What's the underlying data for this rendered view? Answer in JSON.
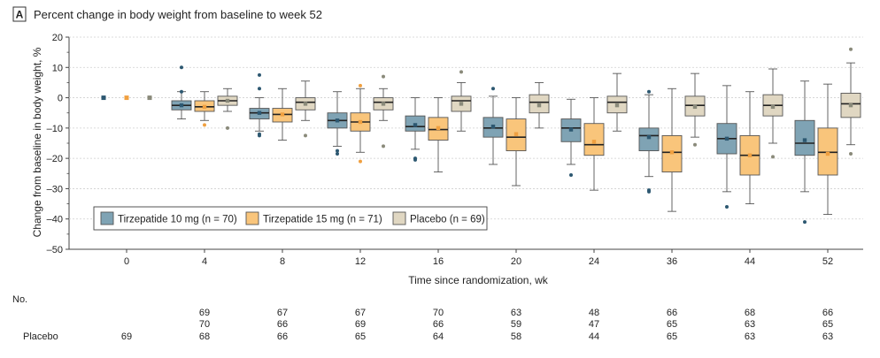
{
  "panel": {
    "letter": "A",
    "title": "Percent change in body weight from baseline to week 52"
  },
  "chart_data": {
    "type": "box",
    "title": "Percent change in body weight from baseline to week 52",
    "xlabel": "Time since randomization, wk",
    "ylabel": "Change from baseline in body weight, %",
    "ylim": [
      -50,
      20
    ],
    "yticks": [
      20,
      10,
      0,
      -10,
      -20,
      -30,
      -40,
      -50
    ],
    "categories": [
      "0",
      "4",
      "8",
      "12",
      "16",
      "20",
      "24",
      "36",
      "44",
      "52"
    ],
    "legend_position": "lower-left",
    "colors": {
      "tirz10": "#7fa3b4",
      "tirz15": "#f9c57b",
      "placebo": "#e0d7c2",
      "box_edge": "#555555",
      "mean_dot_tirz10": "#2d5871",
      "mean_dot_tirz15": "#f0a040",
      "mean_dot_placebo": "#8a8a7a"
    },
    "series": [
      {
        "key": "tirz10",
        "name": "Tirzepatide 10 mg (n = 70)",
        "boxes": [
          {
            "median": 0,
            "mean": 0,
            "q1": 0,
            "q3": 0,
            "wlo": 0,
            "whi": 0,
            "outliers": []
          },
          {
            "median": -2.5,
            "mean": -2.5,
            "q1": -4,
            "q3": -1,
            "wlo": -7,
            "whi": 2,
            "outliers": [
              10,
              2
            ]
          },
          {
            "median": -5,
            "mean": -5,
            "q1": -7,
            "q3": -3.5,
            "wlo": -11,
            "whi": 0,
            "outliers": [
              7.5,
              3,
              -12,
              -12.5
            ]
          },
          {
            "median": -7.5,
            "mean": -7.5,
            "q1": -10,
            "q3": -5,
            "wlo": -16,
            "whi": 2,
            "outliers": [
              -17.5,
              -18.5
            ]
          },
          {
            "median": -9.5,
            "mean": -9,
            "q1": -11,
            "q3": -6,
            "wlo": -17,
            "whi": 0,
            "outliers": [
              -20,
              -20.5
            ]
          },
          {
            "median": -10,
            "mean": -9.5,
            "q1": -13,
            "q3": -6.5,
            "wlo": -22,
            "whi": 0.5,
            "outliers": [
              3
            ]
          },
          {
            "median": -10,
            "mean": -10.5,
            "q1": -14.5,
            "q3": -7,
            "wlo": -22,
            "whi": -0.5,
            "outliers": [
              -25.5
            ]
          },
          {
            "median": -12.5,
            "mean": -13,
            "q1": -17.5,
            "q3": -10,
            "wlo": -26,
            "whi": 1,
            "outliers": [
              2,
              -30.5,
              -31
            ]
          },
          {
            "median": -13.5,
            "mean": -13.5,
            "q1": -18.5,
            "q3": -8.5,
            "wlo": -31,
            "whi": 4,
            "outliers": [
              -36
            ]
          },
          {
            "median": -15,
            "mean": -14,
            "q1": -19,
            "q3": -7.5,
            "wlo": -31,
            "whi": 5.5,
            "outliers": [
              -41
            ]
          }
        ]
      },
      {
        "key": "tirz15",
        "name": "Tirzepatide 15 mg (n = 71)",
        "boxes": [
          {
            "median": 0,
            "mean": 0,
            "q1": 0,
            "q3": 0,
            "wlo": 0,
            "whi": 0,
            "outliers": []
          },
          {
            "median": -3,
            "mean": -3,
            "q1": -4.5,
            "q3": -1,
            "wlo": -7.5,
            "whi": 2,
            "outliers": [
              -9
            ]
          },
          {
            "median": -5.5,
            "mean": -5.5,
            "q1": -8,
            "q3": -3.5,
            "wlo": -14,
            "whi": 3,
            "outliers": []
          },
          {
            "median": -8,
            "mean": -8,
            "q1": -11,
            "q3": -5,
            "wlo": -18,
            "whi": 3,
            "outliers": [
              4,
              -21
            ]
          },
          {
            "median": -10.5,
            "mean": -10,
            "q1": -14,
            "q3": -6.5,
            "wlo": -24.5,
            "whi": 0,
            "outliers": []
          },
          {
            "median": -13,
            "mean": -12,
            "q1": -17.5,
            "q3": -7,
            "wlo": -29,
            "whi": 0,
            "outliers": []
          },
          {
            "median": -15.5,
            "mean": -14.5,
            "q1": -19,
            "q3": -8.5,
            "wlo": -30.5,
            "whi": 0,
            "outliers": []
          },
          {
            "median": -18,
            "mean": -18,
            "q1": -24.5,
            "q3": -12.5,
            "wlo": -37.5,
            "whi": 3,
            "outliers": []
          },
          {
            "median": -19,
            "mean": -19,
            "q1": -25.5,
            "q3": -12.5,
            "wlo": -35,
            "whi": 2,
            "outliers": []
          },
          {
            "median": -18,
            "mean": -18.5,
            "q1": -25.5,
            "q3": -10,
            "wlo": -38.5,
            "whi": 4.5,
            "outliers": []
          }
        ]
      },
      {
        "key": "placebo",
        "name": "Placebo (n = 69)",
        "boxes": [
          {
            "median": 0,
            "mean": 0,
            "q1": 0,
            "q3": 0,
            "wlo": 0,
            "whi": 0,
            "outliers": []
          },
          {
            "median": -1,
            "mean": -1,
            "q1": -2.5,
            "q3": 0.5,
            "wlo": -4.5,
            "whi": 3,
            "outliers": [
              -10
            ]
          },
          {
            "median": -1.5,
            "mean": -2,
            "q1": -4,
            "q3": 0,
            "wlo": -7.5,
            "whi": 5.5,
            "outliers": [
              -12.5
            ]
          },
          {
            "median": -1.5,
            "mean": -2,
            "q1": -4,
            "q3": 0,
            "wlo": -7.5,
            "whi": 3,
            "outliers": [
              7,
              -16
            ]
          },
          {
            "median": -1,
            "mean": -2,
            "q1": -4.5,
            "q3": 0.5,
            "wlo": -11,
            "whi": 5,
            "outliers": [
              8.5
            ]
          },
          {
            "median": -1.5,
            "mean": -2.5,
            "q1": -5,
            "q3": 1,
            "wlo": -10,
            "whi": 5,
            "outliers": []
          },
          {
            "median": -1.5,
            "mean": -2.5,
            "q1": -5,
            "q3": 0.5,
            "wlo": -11,
            "whi": 8,
            "outliers": []
          },
          {
            "median": -2.5,
            "mean": -3,
            "q1": -6,
            "q3": 0.5,
            "wlo": -13,
            "whi": 8,
            "outliers": [
              -15.5
            ]
          },
          {
            "median": -2.5,
            "mean": -3,
            "q1": -6,
            "q3": 1,
            "wlo": -15,
            "whi": 9.5,
            "outliers": [
              -19.5
            ]
          },
          {
            "median": -2,
            "mean": -2.5,
            "q1": -6.5,
            "q3": 1.5,
            "wlo": -15.5,
            "whi": 11.5,
            "outliers": [
              16,
              -18.5
            ]
          }
        ]
      }
    ],
    "table": {
      "header": "No.",
      "rows": [
        {
          "label": "",
          "values": [
            "",
            "69",
            "67",
            "67",
            "70",
            "63",
            "48",
            "66",
            "68",
            "66"
          ]
        },
        {
          "label": "",
          "values": [
            "",
            "70",
            "66",
            "69",
            "66",
            "59",
            "47",
            "65",
            "63",
            "65"
          ]
        },
        {
          "label": "Placebo",
          "values": [
            "69",
            "68",
            "66",
            "65",
            "64",
            "58",
            "44",
            "65",
            "63",
            "63"
          ]
        }
      ]
    }
  }
}
